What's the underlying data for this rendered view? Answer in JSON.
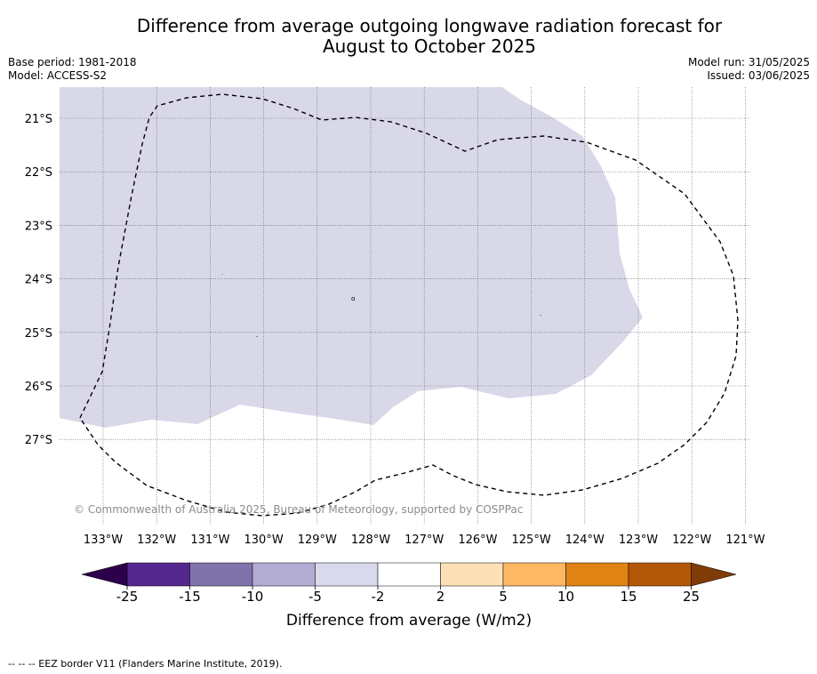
{
  "title": {
    "line1": "Difference from average outgoing longwave radiation forecast for",
    "line2": "August to October 2025"
  },
  "meta": {
    "base_period": "Base period: 1981-2018",
    "model": "Model: ACCESS-S2",
    "model_run": "Model run: 31/05/2025",
    "issued": "Issued: 03/06/2025"
  },
  "map": {
    "lat_labels": [
      "21°S",
      "22°S",
      "23°S",
      "24°S",
      "25°S",
      "26°S",
      "27°S"
    ],
    "lon_labels": [
      "133°W",
      "132°W",
      "131°W",
      "130°W",
      "129°W",
      "128°W",
      "127°W",
      "126°W",
      "125°W",
      "124°W",
      "123°W",
      "122°W",
      "121°W"
    ],
    "fill_color": "#d8d8e9",
    "border_style": "dashed",
    "copyright": "© Commonwealth of Australia 2025, Bureau of Meteorology, supported by COSPPac"
  },
  "colorbar": {
    "title": "Difference from average (W/m2)",
    "ticks": [
      "-25",
      "-15",
      "-10",
      "-5",
      "-2",
      "2",
      "5",
      "10",
      "15",
      "25"
    ],
    "colors": [
      "#54278f",
      "#8073ac",
      "#b2abd2",
      "#d8daeb",
      "#ffffff",
      "#fee0b6",
      "#fdb863",
      "#e08214",
      "#b35806"
    ],
    "under_color": "#2d004b",
    "over_color": "#7f3b08"
  },
  "footer": "--  --  -- EEZ border V11 (Flanders Marine Institute, 2019)."
}
